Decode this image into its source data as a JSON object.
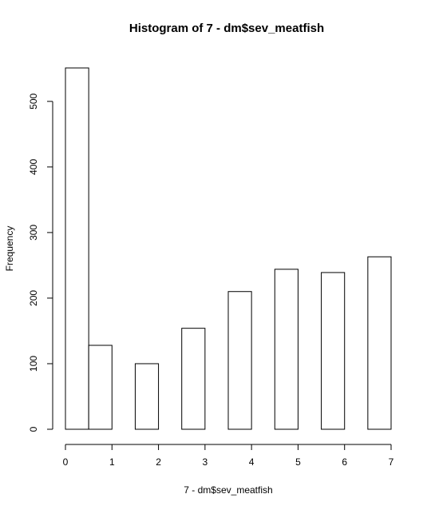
{
  "chart_data": {
    "type": "bar",
    "title": "Histogram of 7 - dm$sev_meatfish",
    "xlabel": "7 - dm$sev_meatfish",
    "ylabel": "Frequency",
    "xlim": [
      0,
      7
    ],
    "ylim": [
      0,
      551
    ],
    "x_ticks": [
      "0",
      "1",
      "2",
      "3",
      "4",
      "5",
      "6",
      "7"
    ],
    "y_ticks": [
      "0",
      "100",
      "200",
      "300",
      "400",
      "500"
    ],
    "bins": [
      {
        "from": 0.0,
        "to": 0.5,
        "count": 551
      },
      {
        "from": 0.5,
        "to": 1.0,
        "count": 128
      },
      {
        "from": 1.0,
        "to": 1.5,
        "count": 0
      },
      {
        "from": 1.5,
        "to": 2.0,
        "count": 100
      },
      {
        "from": 2.0,
        "to": 2.5,
        "count": 0
      },
      {
        "from": 2.5,
        "to": 3.0,
        "count": 154
      },
      {
        "from": 3.0,
        "to": 3.5,
        "count": 0
      },
      {
        "from": 3.5,
        "to": 4.0,
        "count": 210
      },
      {
        "from": 4.0,
        "to": 4.5,
        "count": 0
      },
      {
        "from": 4.5,
        "to": 5.0,
        "count": 244
      },
      {
        "from": 5.0,
        "to": 5.5,
        "count": 0
      },
      {
        "from": 5.5,
        "to": 6.0,
        "count": 239
      },
      {
        "from": 6.0,
        "to": 6.5,
        "count": 0
      },
      {
        "from": 6.5,
        "to": 7.0,
        "count": 263
      }
    ],
    "bar_fill": "#ffffff",
    "bar_stroke": "#000000",
    "grid": false,
    "legend": "none"
  }
}
